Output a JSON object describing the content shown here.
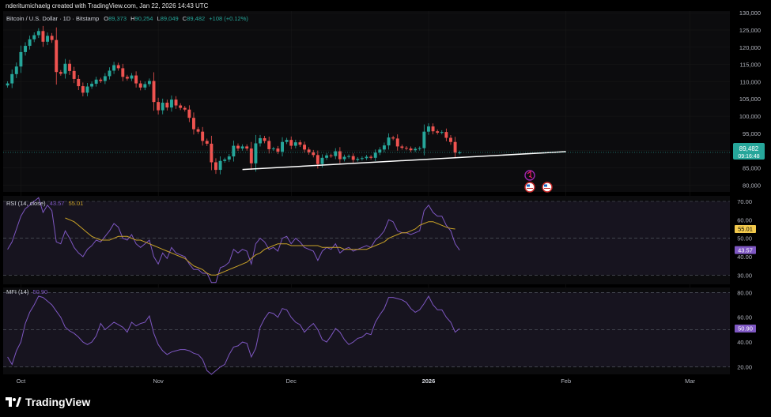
{
  "credit": "nderitumichaelg created with TradingView.com, Jan 22, 2026 14:43 UTC",
  "logo_text": "TradingView",
  "colors": {
    "background": "#000000",
    "pane": "#0c0c0e",
    "band": "#17141f",
    "up": "#26a69a",
    "down": "#ef5350",
    "rsi": "#7e57c2",
    "rsi_ma": "#c9a227",
    "mfi": "#7e57c2",
    "trendline": "#ffffff",
    "grid": "#1a1a1a",
    "text": "#b2b5be",
    "price_label": "#26a69a"
  },
  "main": {
    "symbol": "Bitcoin / U.S. Dollar · 1D · Bitstamp",
    "ohlc": {
      "o_label": "O",
      "o": "89,373",
      "h_label": "H",
      "h": "90,254",
      "l_label": "L",
      "l": "89,049",
      "c_label": "C",
      "c": "89,482",
      "change": "+108 (+0.12%)"
    },
    "price_label": "89,482",
    "countdown": "09:16:48",
    "event_icons": [
      "earnings-flag-icon",
      "us-flag-icon",
      "us-flag-icon"
    ]
  },
  "rsi": {
    "title": "RSI (14, close)",
    "value": "43.57",
    "ma_value": "55.01"
  },
  "mfi": {
    "title": "MFI (14)",
    "value": "50.90"
  },
  "chart_data": [
    {
      "type": "candlestick",
      "title": "Bitcoin / U.S. Dollar · 1D · Bitstamp",
      "y_ticks": [
        80000,
        85000,
        90000,
        95000,
        100000,
        105000,
        110000,
        115000,
        120000,
        125000,
        130000
      ],
      "y_tick_labels": [
        "80,000",
        "85,000",
        "90,000",
        "95,000",
        "100,000",
        "105,000",
        "110,000",
        "115,000",
        "120,000",
        "125,000",
        "130,000"
      ],
      "ylim": [
        78000,
        130500
      ],
      "x_tick_labels": [
        "Oct",
        "Nov",
        "Dec",
        "2026",
        "Feb",
        "Mar"
      ],
      "x_tick_dates": [
        "2025-10-01",
        "2025-11-01",
        "2025-12-01",
        "2026-01-01",
        "2026-02-01",
        "2026-03-01"
      ],
      "x_range": [
        "2025-09-27",
        "2026-03-10"
      ],
      "candles_start": "2025-09-28",
      "candles_close": [
        109500,
        112200,
        114400,
        118600,
        120400,
        122300,
        123500,
        124700,
        121600,
        123300,
        122100,
        112800,
        112300,
        115200,
        113100,
        110800,
        108700,
        106800,
        108600,
        109400,
        110600,
        110200,
        111600,
        113200,
        114800,
        113900,
        111400,
        110900,
        111800,
        109500,
        108300,
        109300,
        110200,
        104100,
        101700,
        103900,
        102500,
        104800,
        103100,
        102400,
        101900,
        99500,
        96200,
        95500,
        92800,
        92000,
        86600,
        84400,
        87000,
        87400,
        88300,
        91400,
        90600,
        91200,
        90600,
        86300,
        92100,
        93600,
        92800,
        90400,
        90600,
        89700,
        92500,
        93100,
        91400,
        92400,
        91700,
        90300,
        89500,
        88700,
        86100,
        87900,
        88600,
        88400,
        89800,
        87500,
        88200,
        88400,
        87300,
        87600,
        87800,
        88200,
        87900,
        89400,
        90300,
        91500,
        93800,
        93500,
        91200,
        90800,
        90600,
        90100,
        90500,
        90700,
        95500,
        97000,
        95600,
        95200,
        95400,
        93700,
        92500,
        89400,
        89482
      ],
      "trendline": [
        {
          "x": "2025-11-20",
          "y": 84500
        },
        {
          "x": "2026-02-01",
          "y": 89700
        }
      ],
      "last_price": 89482
    },
    {
      "type": "line",
      "title": "RSI (14, close)",
      "ylim": [
        25,
        73
      ],
      "y_ticks": [
        30,
        40,
        50,
        60,
        70
      ],
      "y_tick_labels": [
        "30.00",
        "40.00",
        "50.00",
        "60.00",
        "70.00"
      ],
      "bands": [
        30,
        70
      ],
      "x_start": "2025-09-28",
      "series": [
        {
          "name": "RSI",
          "values": [
            44,
            48,
            55,
            62,
            66,
            68,
            70,
            72,
            64,
            68,
            65,
            48,
            47,
            54,
            50,
            45,
            42,
            40,
            44,
            46,
            49,
            48,
            51,
            54,
            58,
            56,
            50,
            49,
            52,
            47,
            45,
            47,
            49,
            40,
            36,
            42,
            39,
            45,
            42,
            41,
            40,
            36,
            33,
            33,
            31,
            31,
            26,
            26,
            34,
            35,
            37,
            44,
            42,
            44,
            43,
            36,
            47,
            50,
            48,
            44,
            45,
            43,
            50,
            51,
            47,
            50,
            48,
            45,
            44,
            43,
            38,
            43,
            45,
            44,
            47,
            42,
            44,
            45,
            43,
            44,
            45,
            46,
            45,
            49,
            51,
            54,
            60,
            59,
            54,
            53,
            53,
            52,
            53,
            54,
            65,
            68,
            64,
            62,
            62,
            57,
            54,
            47,
            43.57
          ]
        },
        {
          "name": "RSI-based MA",
          "start_index": 13,
          "values": [
            61,
            60,
            59,
            57,
            55,
            53,
            51,
            50,
            49,
            49,
            49,
            50,
            51,
            51,
            51,
            50,
            49,
            49,
            48,
            47,
            46,
            45,
            44,
            43,
            42,
            41,
            40,
            39,
            37,
            35,
            34,
            33,
            31,
            30,
            30,
            31,
            32,
            33,
            34,
            35,
            36,
            37,
            39,
            41,
            42,
            44,
            45,
            46,
            47,
            47,
            47,
            46,
            46,
            46,
            46,
            46,
            46,
            46,
            45,
            45,
            45,
            45,
            45,
            44,
            44,
            44,
            44,
            44,
            44,
            45,
            46,
            47,
            48,
            50,
            51,
            52,
            53,
            53,
            54,
            55,
            57,
            58,
            59,
            59,
            58,
            57,
            56,
            55.3,
            55.01
          ]
        }
      ]
    },
    {
      "type": "line",
      "title": "MFI (14)",
      "ylim": [
        14,
        84
      ],
      "y_ticks": [
        20,
        40,
        60,
        80
      ],
      "y_tick_labels": [
        "20.00",
        "40.00",
        "60.00",
        "80.00"
      ],
      "bands": [
        20,
        80
      ],
      "x_start": "2025-09-28",
      "series": [
        {
          "name": "MFI",
          "values": [
            28,
            22,
            33,
            40,
            55,
            64,
            70,
            77,
            76,
            73,
            70,
            65,
            60,
            52,
            49,
            47,
            44,
            40,
            38,
            40,
            45,
            55,
            50,
            53,
            56,
            54,
            52,
            48,
            56,
            53,
            55,
            56,
            61,
            47,
            38,
            33,
            30,
            32,
            33,
            34,
            34,
            33,
            31,
            30,
            26,
            17,
            14,
            17,
            20,
            22,
            30,
            36,
            37,
            40,
            39,
            28,
            35,
            52,
            59,
            64,
            63,
            60,
            67,
            66,
            60,
            56,
            54,
            48,
            52,
            55,
            50,
            42,
            40,
            45,
            51,
            48,
            42,
            38,
            40,
            43,
            44,
            47,
            46,
            56,
            62,
            67,
            76,
            76,
            75,
            74,
            72,
            67,
            64,
            66,
            71,
            77,
            70,
            66,
            66,
            60,
            56,
            48,
            50.9
          ]
        }
      ]
    }
  ]
}
